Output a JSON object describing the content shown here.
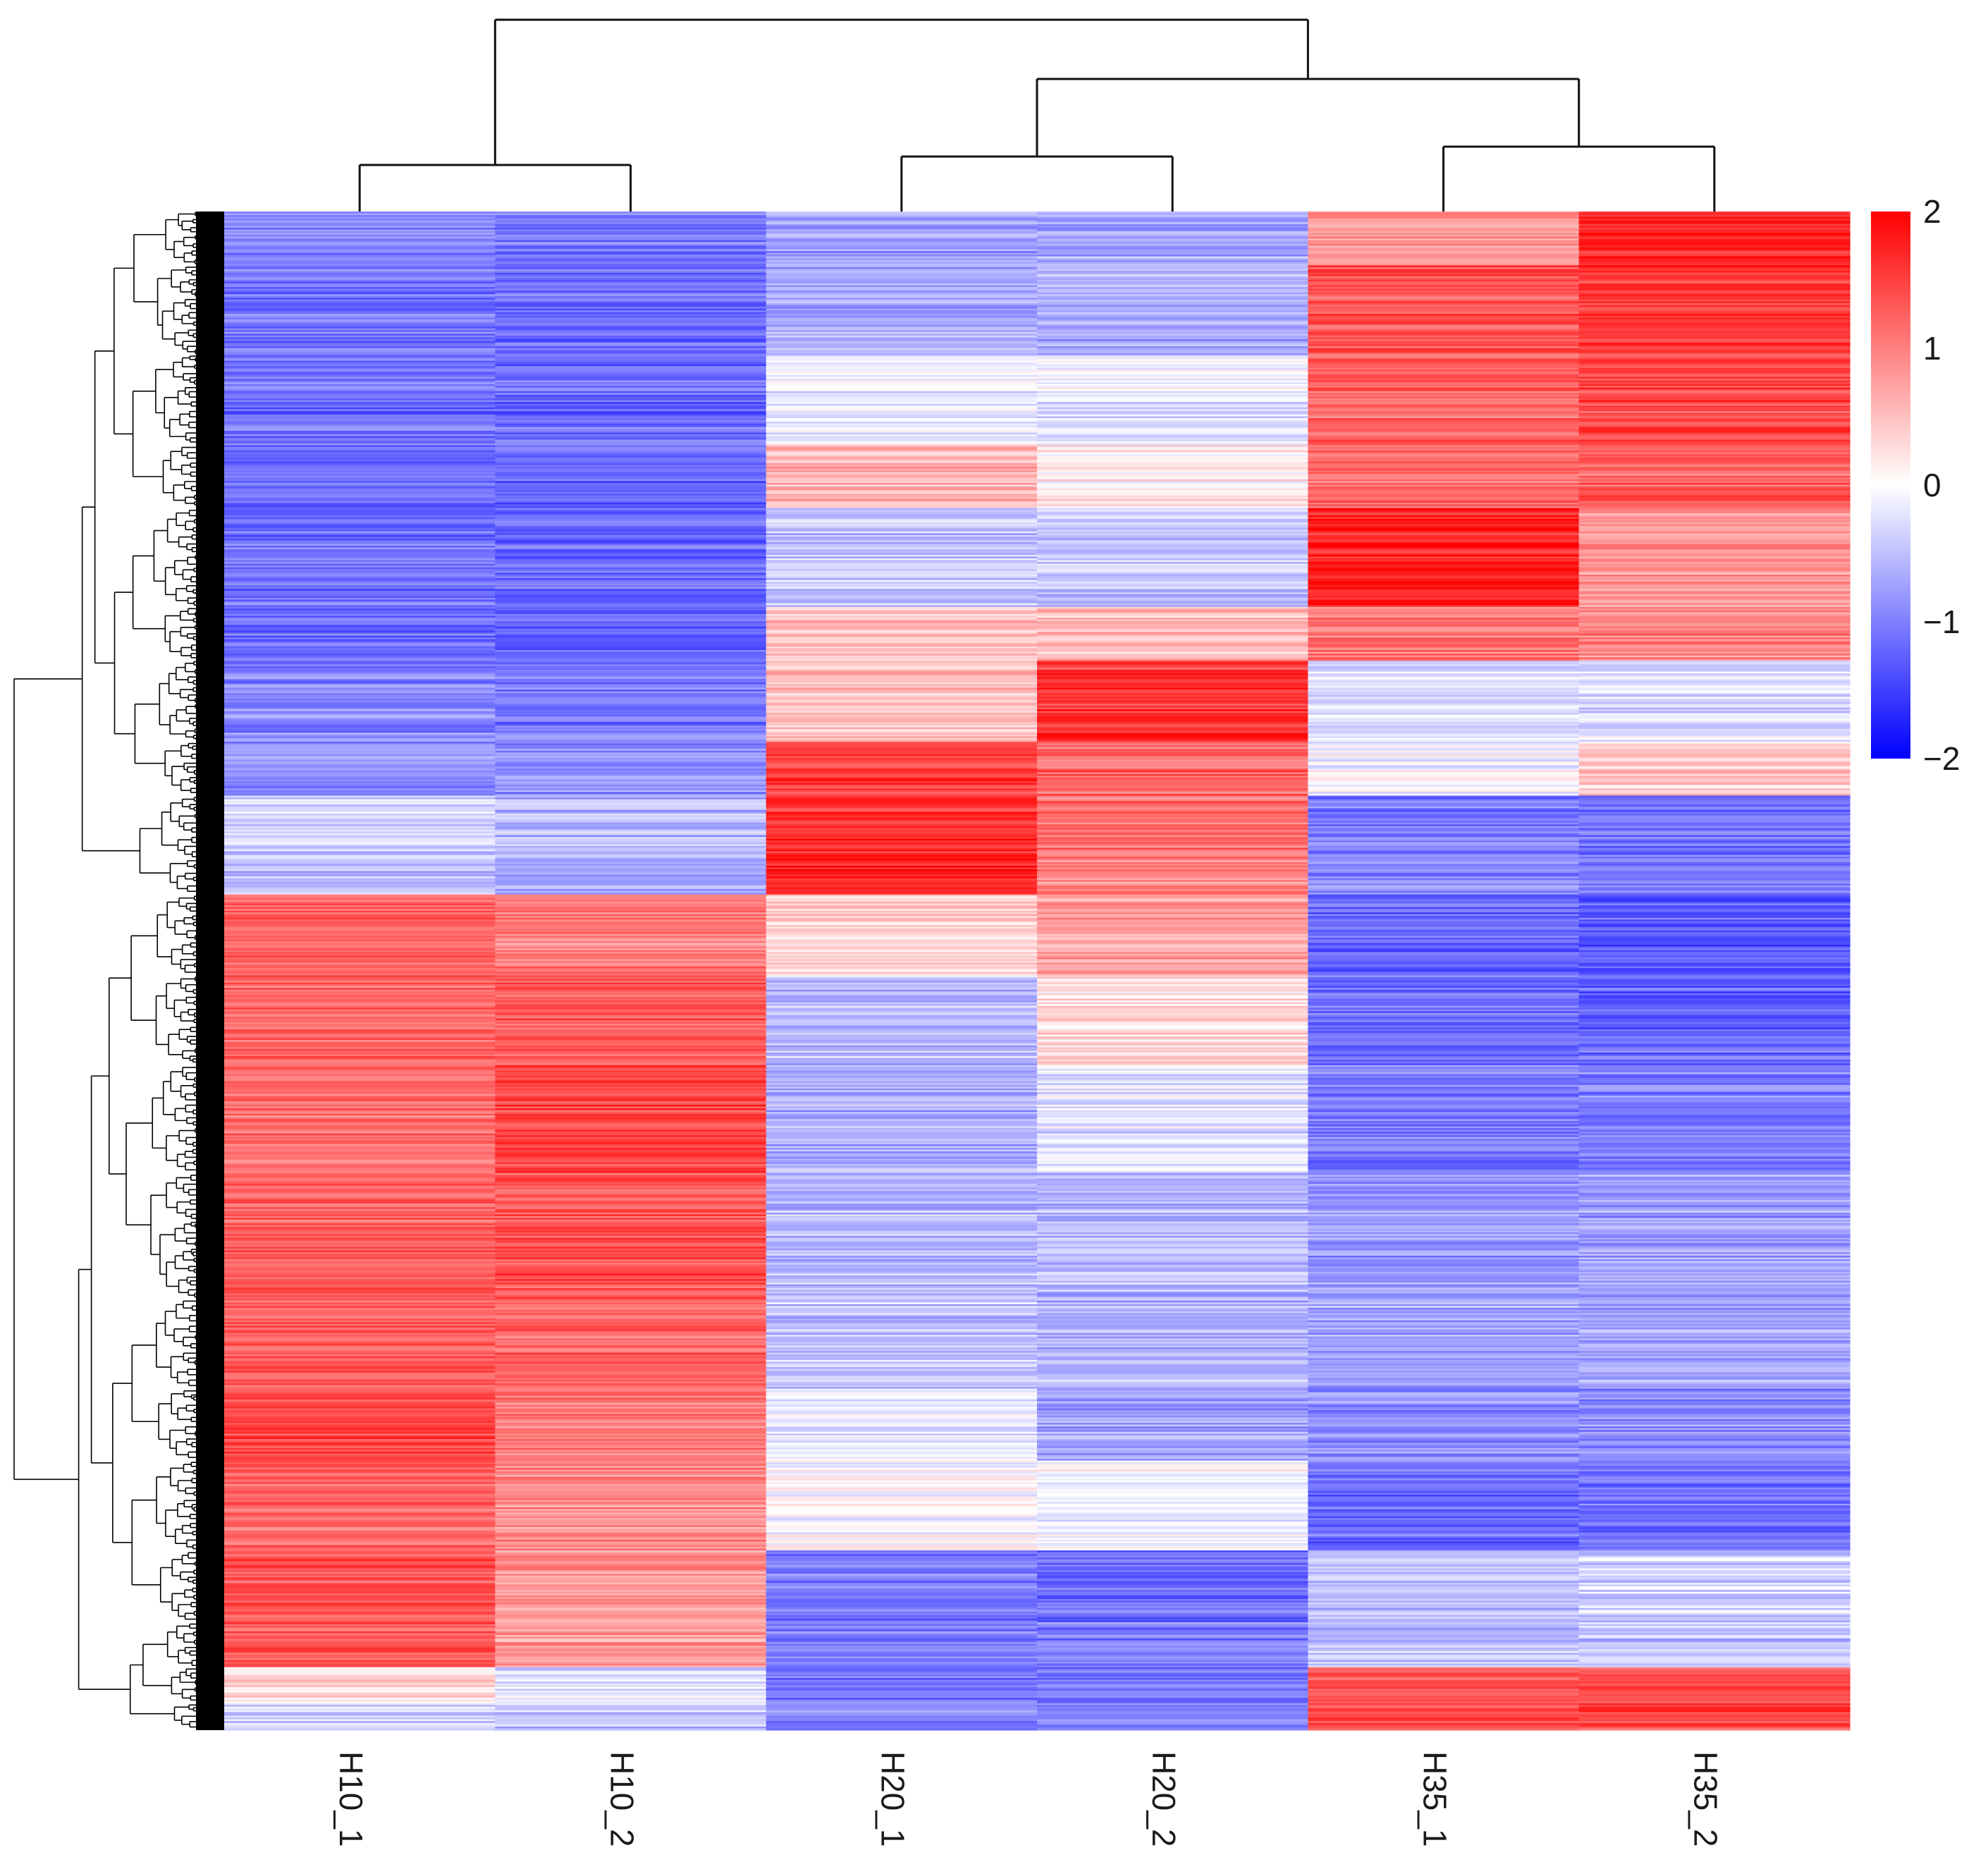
{
  "chart_data": {
    "type": "heatmap",
    "title": "",
    "xlabel": "",
    "ylabel": "",
    "samples": [
      "H10_1",
      "H10_2",
      "H20_1",
      "H20_2",
      "H35_1",
      "H35_2"
    ],
    "color_scale": {
      "min": -2,
      "max": 2,
      "ticks": [
        "2",
        "1",
        "0",
        "−1",
        "−2"
      ],
      "tick_values": [
        2,
        1,
        0,
        -1,
        -2
      ],
      "colors": {
        "low": "#0000ff",
        "mid": "#ffffff",
        "high": "#ff0000"
      }
    },
    "legend_position": "top-right",
    "column_dendrogram": "top",
    "row_dendrogram": "left",
    "row_blocks": [
      {
        "rows": 30,
        "values": [
          -0.95,
          -1.05,
          -0.75,
          -0.7,
          0.8,
          1.7
        ]
      },
      {
        "rows": 50,
        "values": [
          -1.05,
          -1.1,
          -0.65,
          -0.6,
          1.35,
          1.55
        ]
      },
      {
        "rows": 50,
        "values": [
          -1.1,
          -1.15,
          -0.1,
          -0.2,
          1.2,
          1.45
        ]
      },
      {
        "rows": 35,
        "values": [
          -1.15,
          -1.2,
          0.6,
          0.15,
          1.15,
          1.2
        ]
      },
      {
        "rows": 55,
        "values": [
          -1.1,
          -1.15,
          -0.45,
          -0.45,
          1.75,
          0.8
        ]
      },
      {
        "rows": 30,
        "values": [
          -1.15,
          -1.25,
          0.45,
          0.55,
          1.1,
          1.0
        ]
      },
      {
        "rows": 45,
        "values": [
          -0.95,
          -1.05,
          0.5,
          1.6,
          -0.2,
          -0.3
        ]
      },
      {
        "rows": 30,
        "values": [
          -0.9,
          -0.9,
          1.5,
          1.2,
          -0.1,
          0.4
        ]
      },
      {
        "rows": 35,
        "values": [
          -0.4,
          -0.6,
          1.6,
          1.1,
          -1.05,
          -1.1
        ]
      },
      {
        "rows": 20,
        "values": [
          -0.6,
          -0.7,
          1.7,
          0.9,
          -0.95,
          -1.0
        ]
      },
      {
        "rows": 45,
        "values": [
          1.15,
          1.0,
          0.35,
          0.7,
          -1.25,
          -1.3
        ]
      },
      {
        "rows": 50,
        "values": [
          1.2,
          1.3,
          -0.55,
          0.3,
          -1.15,
          -1.2
        ]
      },
      {
        "rows": 60,
        "values": [
          1.1,
          1.45,
          -0.65,
          -0.25,
          -1.05,
          -1.0
        ]
      },
      {
        "rows": 70,
        "values": [
          1.25,
          1.35,
          -0.55,
          -0.55,
          -0.8,
          -0.75
        ]
      },
      {
        "rows": 50,
        "values": [
          1.3,
          1.2,
          -0.45,
          -0.6,
          -0.7,
          -0.7
        ]
      },
      {
        "rows": 40,
        "values": [
          1.45,
          1.05,
          -0.2,
          -0.7,
          -0.85,
          -0.9
        ]
      },
      {
        "rows": 50,
        "values": [
          1.2,
          0.9,
          0.0,
          -0.1,
          -1.15,
          -1.1
        ]
      },
      {
        "rows": 40,
        "values": [
          1.35,
          0.85,
          -1.05,
          -1.15,
          -0.45,
          -0.3
        ]
      },
      {
        "rows": 25,
        "values": [
          1.25,
          0.8,
          -1.0,
          -1.0,
          -0.5,
          -0.45
        ]
      },
      {
        "rows": 20,
        "values": [
          0.25,
          -0.3,
          -1.05,
          -1.1,
          1.3,
          1.35
        ]
      },
      {
        "rows": 15,
        "values": [
          -0.45,
          -0.5,
          -0.95,
          -1.0,
          1.35,
          1.45
        ]
      }
    ]
  }
}
